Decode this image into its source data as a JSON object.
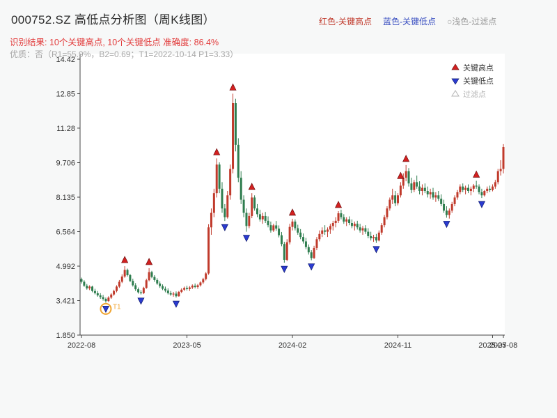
{
  "header": {
    "title": "000752.SZ 高低点分析图（周K线图）",
    "legend_top": [
      {
        "label": "红色-关键高点",
        "color": "#c0392b"
      },
      {
        "label": "蓝色-关键低点",
        "color": "#3a4fc1"
      },
      {
        "label": "○浅色-过滤点",
        "color": "#9a9a9a"
      }
    ],
    "result_line": "识别结果: 10个关键高点, 10个关键低点  准确度: 86.4%",
    "quality_line": "优质：否（R1=55.9%，B2=0.69；T1=2022-10-14 P1=3.33）"
  },
  "colors": {
    "up": "#c03a2b",
    "down": "#2e7d4e",
    "high_marker": "#d32020",
    "low_marker": "#2b3bd0",
    "annotation": "#f0a430",
    "axis": "#444444",
    "tick_text": "#333333"
  },
  "chart_data": {
    "type": "candlestick",
    "title": "000752.SZ 高低点分析图（周K线图）",
    "xlabel": "",
    "ylabel": "",
    "grid": false,
    "ylim": [
      1.85,
      14.42
    ],
    "yticks": [
      1.85,
      3.421,
      4.992,
      6.564,
      8.135,
      9.706,
      11.28,
      12.85,
      14.42
    ],
    "ytick_labels": [
      "1.850",
      "3.421",
      "4.992",
      "6.564",
      "8.135",
      "9.706",
      "11.28",
      "12.85",
      "14.42"
    ],
    "xticks": [
      {
        "index": 0,
        "label": "2022-08"
      },
      {
        "index": 39,
        "label": "2023-05"
      },
      {
        "index": 78,
        "label": "2024-02"
      },
      {
        "index": 117,
        "label": "2024-11"
      },
      {
        "index": 152,
        "label": "2025-07"
      },
      {
        "index": 156,
        "label": "2025-08"
      }
    ],
    "candles": [
      [
        4.4,
        4.47,
        4.2,
        4.28
      ],
      [
        4.28,
        4.35,
        4.05,
        4.1
      ],
      [
        4.1,
        4.18,
        3.92,
        3.98
      ],
      [
        3.98,
        4.12,
        3.9,
        4.06
      ],
      [
        4.06,
        4.1,
        3.8,
        3.86
      ],
      [
        3.86,
        3.96,
        3.7,
        3.76
      ],
      [
        3.76,
        3.86,
        3.6,
        3.66
      ],
      [
        3.66,
        3.76,
        3.5,
        3.58
      ],
      [
        3.58,
        3.68,
        3.42,
        3.5
      ],
      [
        3.5,
        3.56,
        3.33,
        3.4
      ],
      [
        3.4,
        3.62,
        3.36,
        3.56
      ],
      [
        3.56,
        3.76,
        3.5,
        3.7
      ],
      [
        3.7,
        3.92,
        3.64,
        3.86
      ],
      [
        3.86,
        4.12,
        3.8,
        4.06
      ],
      [
        4.06,
        4.36,
        4.0,
        4.28
      ],
      [
        4.28,
        4.62,
        4.22,
        4.52
      ],
      [
        4.52,
        4.99,
        4.46,
        4.82
      ],
      [
        4.82,
        4.88,
        4.52,
        4.58
      ],
      [
        4.58,
        4.64,
        4.26,
        4.32
      ],
      [
        4.32,
        4.42,
        4.06,
        4.12
      ],
      [
        4.12,
        4.22,
        3.86,
        3.94
      ],
      [
        3.94,
        4.02,
        3.74,
        3.8
      ],
      [
        3.8,
        3.9,
        3.7,
        3.76
      ],
      [
        3.76,
        4.05,
        3.72,
        4.0
      ],
      [
        4.0,
        4.42,
        3.96,
        4.35
      ],
      [
        4.35,
        4.9,
        4.3,
        4.72
      ],
      [
        4.72,
        4.78,
        4.44,
        4.5
      ],
      [
        4.5,
        4.58,
        4.28,
        4.36
      ],
      [
        4.36,
        4.44,
        4.14,
        4.2
      ],
      [
        4.2,
        4.3,
        4.0,
        4.08
      ],
      [
        4.08,
        4.16,
        3.9,
        3.96
      ],
      [
        3.96,
        4.06,
        3.8,
        3.88
      ],
      [
        3.88,
        3.98,
        3.7,
        3.76
      ],
      [
        3.76,
        3.86,
        3.64,
        3.7
      ],
      [
        3.7,
        3.82,
        3.6,
        3.74
      ],
      [
        3.74,
        3.84,
        3.56,
        3.62
      ],
      [
        3.62,
        3.86,
        3.6,
        3.82
      ],
      [
        3.82,
        3.98,
        3.76,
        3.92
      ],
      [
        3.92,
        4.06,
        3.86,
        4.0
      ],
      [
        4.0,
        4.1,
        3.88,
        3.95
      ],
      [
        3.95,
        4.08,
        3.86,
        4.02
      ],
      [
        4.02,
        4.16,
        3.95,
        4.1
      ],
      [
        4.1,
        4.2,
        3.98,
        4.04
      ],
      [
        4.04,
        4.18,
        3.96,
        4.12
      ],
      [
        4.12,
        4.3,
        4.06,
        4.25
      ],
      [
        4.25,
        4.46,
        4.18,
        4.4
      ],
      [
        4.4,
        4.72,
        4.34,
        4.66
      ],
      [
        4.66,
        6.9,
        4.6,
        6.76
      ],
      [
        6.76,
        7.62,
        6.42,
        7.42
      ],
      [
        7.42,
        8.52,
        7.22,
        8.32
      ],
      [
        8.32,
        9.9,
        8.12,
        9.62
      ],
      [
        9.62,
        9.72,
        8.32,
        8.52
      ],
      [
        8.52,
        8.82,
        7.42,
        7.62
      ],
      [
        7.62,
        7.82,
        7.05,
        7.22
      ],
      [
        7.22,
        8.42,
        7.16,
        8.22
      ],
      [
        8.22,
        9.62,
        8.02,
        9.42
      ],
      [
        9.42,
        12.85,
        9.22,
        12.42
      ],
      [
        12.42,
        12.62,
        10.22,
        10.52
      ],
      [
        10.52,
        10.82,
        8.82,
        9.02
      ],
      [
        9.02,
        9.32,
        7.82,
        8.02
      ],
      [
        8.02,
        8.22,
        7.22,
        7.42
      ],
      [
        7.42,
        7.62,
        6.56,
        6.82
      ],
      [
        6.82,
        7.42,
        6.72,
        7.28
      ],
      [
        7.28,
        8.32,
        7.18,
        8.12
      ],
      [
        8.12,
        8.22,
        7.52,
        7.62
      ],
      [
        7.62,
        7.82,
        7.22,
        7.36
      ],
      [
        7.36,
        7.56,
        7.02,
        7.12
      ],
      [
        7.12,
        7.42,
        6.92,
        7.28
      ],
      [
        7.28,
        7.46,
        6.96,
        7.06
      ],
      [
        7.06,
        7.26,
        6.76,
        6.86
      ],
      [
        6.86,
        7.02,
        6.52,
        6.62
      ],
      [
        6.62,
        6.92,
        6.55,
        6.85
      ],
      [
        6.85,
        7.05,
        6.6,
        6.7
      ],
      [
        6.7,
        6.85,
        6.3,
        6.4
      ],
      [
        6.4,
        6.55,
        5.9,
        6.0
      ],
      [
        6.0,
        6.1,
        5.15,
        5.28
      ],
      [
        5.28,
        6.22,
        5.22,
        6.08
      ],
      [
        6.08,
        6.92,
        5.98,
        6.78
      ],
      [
        6.78,
        7.15,
        6.62,
        7.02
      ],
      [
        7.02,
        7.12,
        6.62,
        6.72
      ],
      [
        6.72,
        6.88,
        6.42,
        6.52
      ],
      [
        6.52,
        6.68,
        6.22,
        6.32
      ],
      [
        6.32,
        6.48,
        6.02,
        6.12
      ],
      [
        6.12,
        6.28,
        5.76,
        5.86
      ],
      [
        5.86,
        5.98,
        5.52,
        5.62
      ],
      [
        5.62,
        5.72,
        5.26,
        5.36
      ],
      [
        5.36,
        5.92,
        5.32,
        5.82
      ],
      [
        5.82,
        6.32,
        5.72,
        6.22
      ],
      [
        6.22,
        6.62,
        6.12,
        6.46
      ],
      [
        6.46,
        6.76,
        6.32,
        6.62
      ],
      [
        6.62,
        6.86,
        6.42,
        6.56
      ],
      [
        6.56,
        6.76,
        6.32,
        6.66
      ],
      [
        6.66,
        6.92,
        6.46,
        6.82
      ],
      [
        6.82,
        7.06,
        6.62,
        6.96
      ],
      [
        6.96,
        7.22,
        6.76,
        7.06
      ],
      [
        7.06,
        7.5,
        6.96,
        7.4
      ],
      [
        7.4,
        7.56,
        7.12,
        7.22
      ],
      [
        7.22,
        7.36,
        6.92,
        7.02
      ],
      [
        7.02,
        7.22,
        6.82,
        7.12
      ],
      [
        7.12,
        7.26,
        6.86,
        6.96
      ],
      [
        6.96,
        7.12,
        6.72,
        6.82
      ],
      [
        6.82,
        7.02,
        6.62,
        6.92
      ],
      [
        6.92,
        7.06,
        6.66,
        6.76
      ],
      [
        6.76,
        6.92,
        6.52,
        6.62
      ],
      [
        6.62,
        6.82,
        6.42,
        6.72
      ],
      [
        6.72,
        6.86,
        6.46,
        6.56
      ],
      [
        6.56,
        6.72,
        6.26,
        6.36
      ],
      [
        6.36,
        6.56,
        6.16,
        6.26
      ],
      [
        6.26,
        6.42,
        6.1,
        6.32
      ],
      [
        6.32,
        6.46,
        6.05,
        6.16
      ],
      [
        6.16,
        6.62,
        6.12,
        6.52
      ],
      [
        6.52,
        6.96,
        6.42,
        6.86
      ],
      [
        6.86,
        7.32,
        6.76,
        7.22
      ],
      [
        7.22,
        7.72,
        7.12,
        7.62
      ],
      [
        7.62,
        8.12,
        7.52,
        8.02
      ],
      [
        8.02,
        8.52,
        7.82,
        8.22
      ],
      [
        8.22,
        8.42,
        7.72,
        7.86
      ],
      [
        7.86,
        8.32,
        7.76,
        8.22
      ],
      [
        8.22,
        8.82,
        8.12,
        8.66
      ],
      [
        8.66,
        9.22,
        8.52,
        9.02
      ],
      [
        9.02,
        9.6,
        8.86,
        9.32
      ],
      [
        9.32,
        9.46,
        8.62,
        8.76
      ],
      [
        8.76,
        9.02,
        8.32,
        8.46
      ],
      [
        8.46,
        8.92,
        8.36,
        8.82
      ],
      [
        8.82,
        9.12,
        8.52,
        8.62
      ],
      [
        8.62,
        8.86,
        8.26,
        8.42
      ],
      [
        8.42,
        8.72,
        8.22,
        8.56
      ],
      [
        8.56,
        8.76,
        8.32,
        8.42
      ],
      [
        8.42,
        8.62,
        8.12,
        8.26
      ],
      [
        8.26,
        8.52,
        8.06,
        8.36
      ],
      [
        8.36,
        8.56,
        8.02,
        8.12
      ],
      [
        8.12,
        8.36,
        7.92,
        8.22
      ],
      [
        8.22,
        8.42,
        7.96,
        8.06
      ],
      [
        8.06,
        8.26,
        7.72,
        7.82
      ],
      [
        7.82,
        8.02,
        7.42,
        7.52
      ],
      [
        7.52,
        7.72,
        7.2,
        7.32
      ],
      [
        7.32,
        7.62,
        7.16,
        7.52
      ],
      [
        7.52,
        7.92,
        7.42,
        7.82
      ],
      [
        7.82,
        8.22,
        7.72,
        8.12
      ],
      [
        8.12,
        8.46,
        8.02,
        8.36
      ],
      [
        8.36,
        8.72,
        8.26,
        8.62
      ],
      [
        8.62,
        8.76,
        8.36,
        8.46
      ],
      [
        8.46,
        8.66,
        8.26,
        8.56
      ],
      [
        8.56,
        8.72,
        8.32,
        8.42
      ],
      [
        8.42,
        8.62,
        8.22,
        8.52
      ],
      [
        8.52,
        8.74,
        8.36,
        8.66
      ],
      [
        8.66,
        8.88,
        8.52,
        8.62
      ],
      [
        8.62,
        8.72,
        8.26,
        8.36
      ],
      [
        8.36,
        8.52,
        8.1,
        8.22
      ],
      [
        8.22,
        8.46,
        8.16,
        8.42
      ],
      [
        8.42,
        8.62,
        8.32,
        8.52
      ],
      [
        8.52,
        8.66,
        8.36,
        8.46
      ],
      [
        8.46,
        8.72,
        8.4,
        8.62
      ],
      [
        8.62,
        8.92,
        8.52,
        8.82
      ],
      [
        8.82,
        9.42,
        8.72,
        9.32
      ],
      [
        9.32,
        9.82,
        9.12,
        9.42
      ],
      [
        9.42,
        10.55,
        9.22,
        10.42
      ]
    ],
    "key_highs": [
      {
        "index": 16,
        "price": 4.99
      },
      {
        "index": 25,
        "price": 4.9
      },
      {
        "index": 50,
        "price": 9.9
      },
      {
        "index": 56,
        "price": 12.85
      },
      {
        "index": 63,
        "price": 8.32
      },
      {
        "index": 78,
        "price": 7.15
      },
      {
        "index": 95,
        "price": 7.5
      },
      {
        "index": 118,
        "price": 8.82
      },
      {
        "index": 120,
        "price": 9.6
      },
      {
        "index": 146,
        "price": 8.88
      }
    ],
    "key_lows": [
      {
        "index": 9,
        "price": 3.33
      },
      {
        "index": 22,
        "price": 3.7
      },
      {
        "index": 35,
        "price": 3.56
      },
      {
        "index": 53,
        "price": 7.05
      },
      {
        "index": 61,
        "price": 6.56
      },
      {
        "index": 75,
        "price": 5.15
      },
      {
        "index": 85,
        "price": 5.26
      },
      {
        "index": 109,
        "price": 6.05
      },
      {
        "index": 135,
        "price": 7.2
      },
      {
        "index": 148,
        "price": 8.1
      }
    ],
    "annotation": {
      "index": 9,
      "price": 3.33,
      "label": "T1",
      "color": "#f0a430"
    },
    "plot_legend": [
      {
        "marker": "up",
        "label": "关键高点"
      },
      {
        "marker": "down",
        "label": "关键低点"
      },
      {
        "marker": "open",
        "label": "过滤点"
      }
    ],
    "legend_position": "upper right"
  }
}
